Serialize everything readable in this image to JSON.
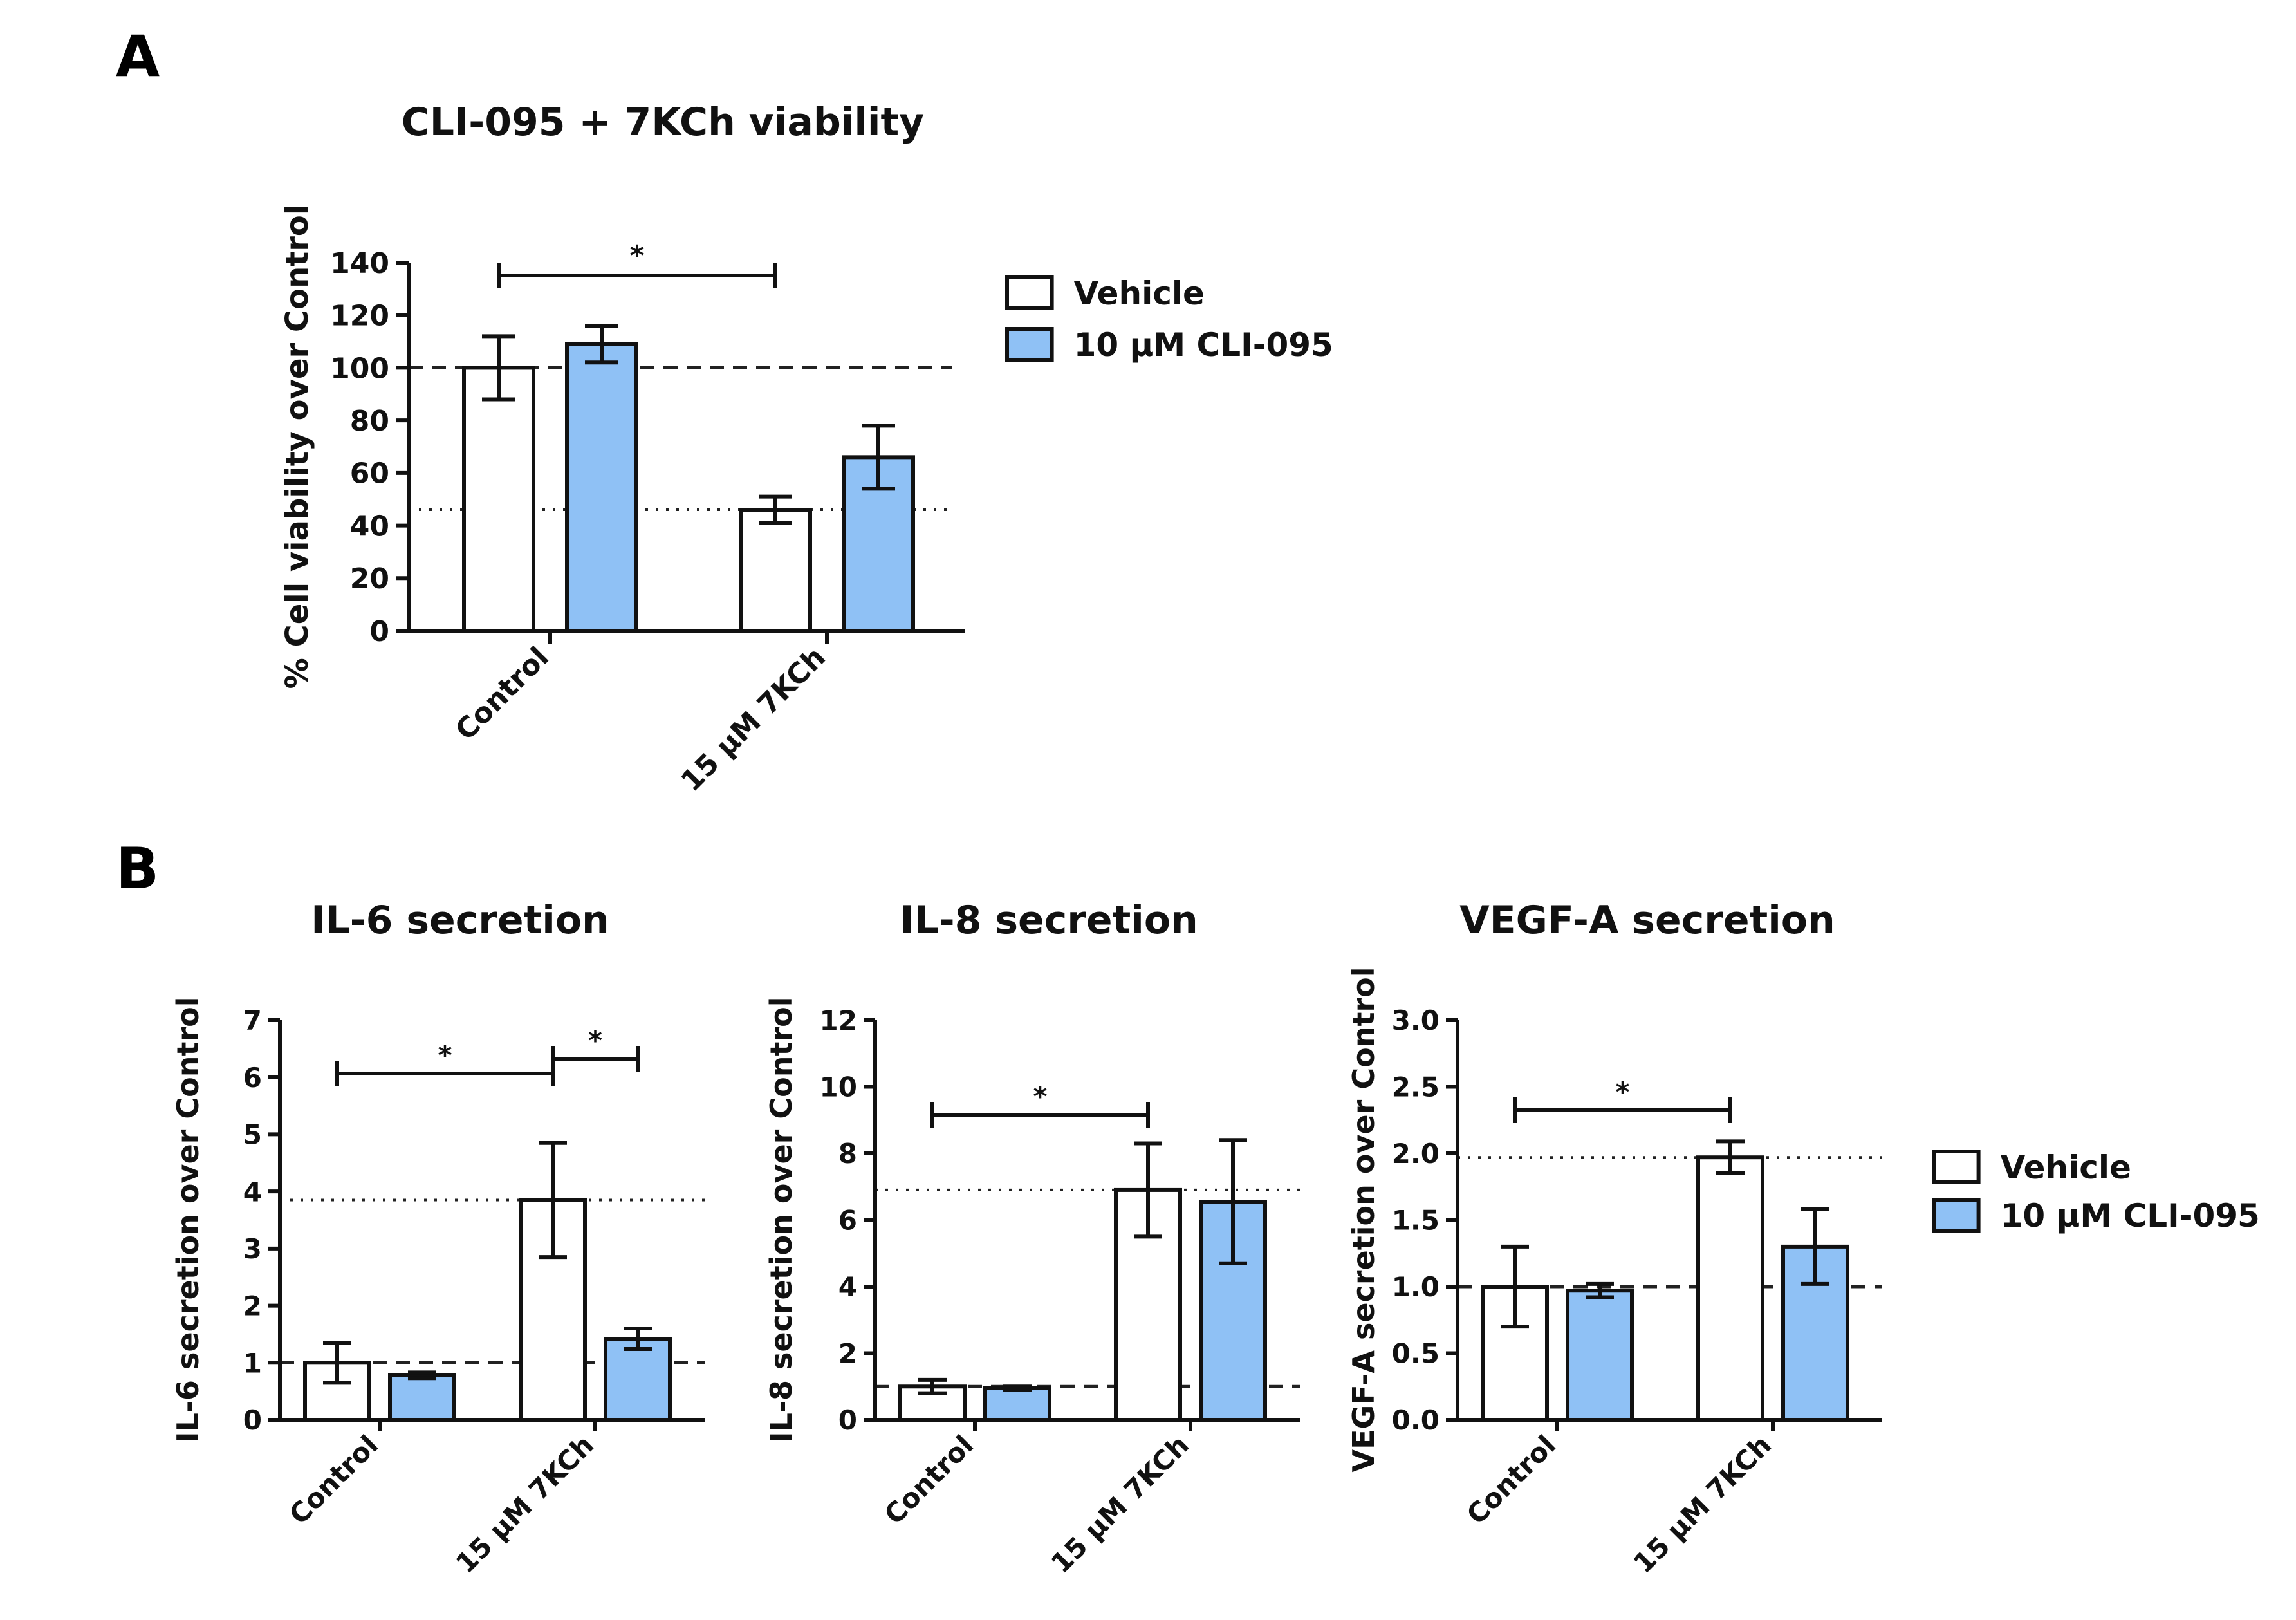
{
  "panels": {
    "A": {
      "label": "A"
    },
    "B": {
      "label": "B"
    }
  },
  "legend": {
    "items": [
      {
        "label": "Vehicle",
        "color": "#ffffff"
      },
      {
        "label": "10 µM CLI-095",
        "color": "#8fc1f5"
      }
    ]
  },
  "colors": {
    "vehicle": "#ffffff",
    "cli095": "#8fc1f5",
    "stroke": "#111111"
  },
  "chart_data": [
    {
      "id": "viability",
      "type": "bar",
      "title": "CLI-095 + 7KCh viability",
      "ylabel": "% Cell viability over Control",
      "categories": [
        "Control",
        "15 µM 7KCh"
      ],
      "ylim": [
        0,
        140
      ],
      "yticks": [
        "0",
        "20",
        "40",
        "60",
        "80",
        "100",
        "120",
        "140"
      ],
      "series": [
        {
          "name": "Vehicle",
          "values": [
            100,
            46
          ],
          "errors": [
            12,
            5
          ]
        },
        {
          "name": "10 µM CLI-095",
          "values": [
            109,
            66
          ],
          "errors": [
            7,
            12
          ]
        }
      ],
      "reference_lines": [
        {
          "value": 100,
          "style": "dashed"
        },
        {
          "value": 46,
          "style": "dotted"
        }
      ],
      "significance": [
        {
          "from": [
            0,
            0
          ],
          "to": [
            1,
            0
          ],
          "label": "*"
        }
      ],
      "legend_position": "right"
    },
    {
      "id": "il6",
      "type": "bar",
      "title": "IL-6 secretion",
      "ylabel": "IL-6 secretion over Control",
      "categories": [
        "Control",
        "15 µM 7KCh"
      ],
      "ylim": [
        0,
        7
      ],
      "yticks": [
        "0",
        "1",
        "2",
        "3",
        "4",
        "5",
        "6",
        "7"
      ],
      "series": [
        {
          "name": "Vehicle",
          "values": [
            1.0,
            3.85
          ],
          "errors": [
            0.35,
            1.0
          ]
        },
        {
          "name": "10 µM CLI-095",
          "values": [
            0.78,
            1.42
          ],
          "errors": [
            0.05,
            0.18
          ]
        }
      ],
      "reference_lines": [
        {
          "value": 1.0,
          "style": "dashed"
        },
        {
          "value": 3.85,
          "style": "dotted"
        }
      ],
      "significance": [
        {
          "from": [
            0,
            0
          ],
          "to": [
            1,
            0
          ],
          "label": "*"
        },
        {
          "from": [
            1,
            0
          ],
          "to": [
            1,
            1
          ],
          "label": "*"
        }
      ]
    },
    {
      "id": "il8",
      "type": "bar",
      "title": "IL-8 secretion",
      "ylabel": "IL-8 secretion over Control",
      "categories": [
        "Control",
        "15 µM 7KCh"
      ],
      "ylim": [
        0,
        12
      ],
      "yticks": [
        "0",
        "2",
        "4",
        "6",
        "8",
        "10",
        "12"
      ],
      "series": [
        {
          "name": "Vehicle",
          "values": [
            1.0,
            6.9
          ],
          "errors": [
            0.2,
            1.4
          ]
        },
        {
          "name": "10 µM CLI-095",
          "values": [
            0.95,
            6.55
          ],
          "errors": [
            0.05,
            1.85
          ]
        }
      ],
      "reference_lines": [
        {
          "value": 1.0,
          "style": "dashed"
        },
        {
          "value": 6.9,
          "style": "dotted"
        }
      ],
      "significance": [
        {
          "from": [
            0,
            0
          ],
          "to": [
            1,
            0
          ],
          "label": "*"
        }
      ]
    },
    {
      "id": "vegfa",
      "type": "bar",
      "title": "VEGF-A secretion",
      "ylabel": "VEGF-A secretion over Control",
      "categories": [
        "Control",
        "15 µM 7KCh"
      ],
      "ylim": [
        0,
        3.0
      ],
      "yticks": [
        "0.0",
        "0.5",
        "1.0",
        "1.5",
        "2.0",
        "2.5",
        "3.0"
      ],
      "series": [
        {
          "name": "Vehicle",
          "values": [
            1.0,
            1.97
          ],
          "errors": [
            0.3,
            0.12
          ]
        },
        {
          "name": "10 µM CLI-095",
          "values": [
            0.97,
            1.3
          ],
          "errors": [
            0.05,
            0.28
          ]
        }
      ],
      "reference_lines": [
        {
          "value": 1.0,
          "style": "dashed"
        },
        {
          "value": 1.97,
          "style": "dotted"
        }
      ],
      "significance": [
        {
          "from": [
            0,
            0
          ],
          "to": [
            1,
            0
          ],
          "label": "*"
        }
      ],
      "legend_position": "right"
    }
  ]
}
